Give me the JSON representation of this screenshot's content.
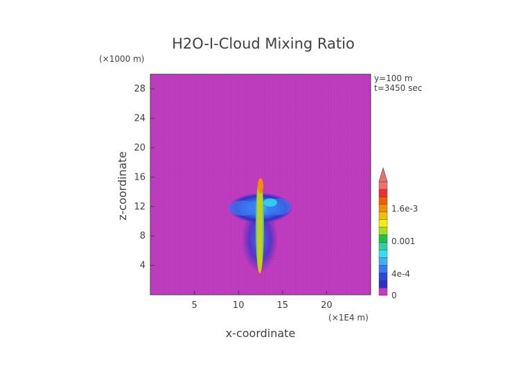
{
  "chart_data": {
    "type": "heatmap",
    "title": "H2O-I-Cloud Mixing Ratio",
    "xlabel": "x-coordinate",
    "ylabel": "z-coordinate",
    "x_unit": "(×1E4 m)",
    "y_unit": "(×1000 m)",
    "annotations": [
      "y=100 m",
      "t=3450 sec"
    ],
    "xlim": [
      0,
      25
    ],
    "ylim": [
      0,
      30
    ],
    "x_ticks": [
      5,
      10,
      15,
      20
    ],
    "y_ticks": [
      4,
      8,
      12,
      16,
      20,
      24,
      28
    ],
    "background_color": "#c03cc0",
    "colorbar": {
      "min": 0,
      "max": 0.0021,
      "tick_labels": [
        "0",
        "4e-4",
        "0.001",
        "1.6e-3"
      ],
      "tick_values": [
        0,
        0.0004,
        0.001,
        0.0016
      ],
      "colors": [
        "#c03cc0",
        "#3030c8",
        "#2848e0",
        "#3c78f0",
        "#40b0f0",
        "#30e0f0",
        "#30d0a0",
        "#20c040",
        "#a0e020",
        "#f0f000",
        "#f0c000",
        "#f09000",
        "#f06000",
        "#f03030",
        "#f07070"
      ]
    },
    "features": [
      {
        "name": "updraft column",
        "x": 12.5,
        "z_range": [
          3,
          16
        ],
        "peak": 0.0018
      },
      {
        "name": "anvil",
        "x_range": [
          9,
          16
        ],
        "z_range": [
          10,
          13.5
        ],
        "peak": 0.0006
      },
      {
        "name": "lower skirt",
        "x_range": [
          10,
          14.5
        ],
        "z_range": [
          3.5,
          10
        ],
        "peak": 0.0003
      }
    ]
  }
}
